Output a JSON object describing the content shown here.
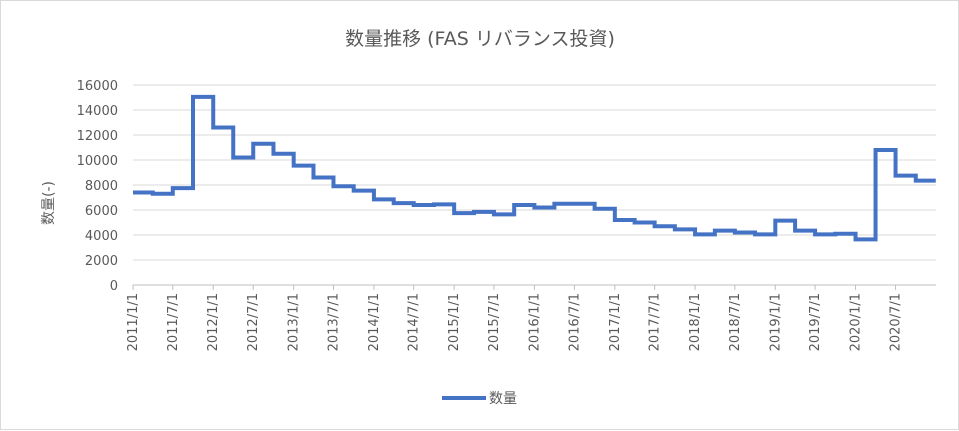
{
  "chart_data": {
    "type": "line",
    "title": "数量推移 (FAS リバランス投資)",
    "xlabel": "",
    "ylabel": "数量(-)",
    "ylim": [
      0,
      16000
    ],
    "yticks": [
      0,
      2000,
      4000,
      6000,
      8000,
      10000,
      12000,
      14000,
      16000
    ],
    "xticks": [
      "2011/1/1",
      "2011/7/1",
      "2012/1/1",
      "2012/7/1",
      "2013/1/1",
      "2013/7/1",
      "2014/1/1",
      "2014/7/1",
      "2015/1/1",
      "2015/7/1",
      "2016/1/1",
      "2016/7/1",
      "2017/1/1",
      "2017/7/1",
      "2018/1/1",
      "2018/7/1",
      "2019/1/1",
      "2019/7/1",
      "2020/1/1",
      "2020/7/1"
    ],
    "xlim": [
      "2011/1/1",
      "2020/12/31"
    ],
    "step": true,
    "grid": true,
    "legend_position": "bottom",
    "color": "#4472c4",
    "series": [
      {
        "name": "数量",
        "x": [
          "2011/1/1",
          "2011/4/1",
          "2011/7/1",
          "2011/10/1",
          "2012/1/1",
          "2012/4/1",
          "2012/7/1",
          "2012/10/1",
          "2013/1/1",
          "2013/4/1",
          "2013/7/1",
          "2013/10/1",
          "2014/1/1",
          "2014/4/1",
          "2014/7/1",
          "2014/10/1",
          "2015/1/1",
          "2015/4/1",
          "2015/7/1",
          "2015/10/1",
          "2016/1/1",
          "2016/4/1",
          "2016/7/1",
          "2016/10/1",
          "2017/1/1",
          "2017/4/1",
          "2017/7/1",
          "2017/10/1",
          "2018/1/1",
          "2018/4/1",
          "2018/7/1",
          "2018/10/1",
          "2019/1/1",
          "2019/4/1",
          "2019/7/1",
          "2019/10/1",
          "2020/1/1",
          "2020/4/1",
          "2020/7/1",
          "2020/10/1"
        ],
        "values": [
          7400,
          7300,
          7750,
          15050,
          12600,
          10200,
          11300,
          10500,
          9550,
          8600,
          7900,
          7550,
          6850,
          6550,
          6400,
          6450,
          5750,
          5850,
          5650,
          6400,
          6200,
          6500,
          6500,
          6100,
          5200,
          5000,
          4700,
          4450,
          4050,
          4350,
          4200,
          4050,
          5150,
          4350,
          4050,
          4100,
          3650,
          10800,
          8750,
          8350
        ]
      }
    ]
  }
}
